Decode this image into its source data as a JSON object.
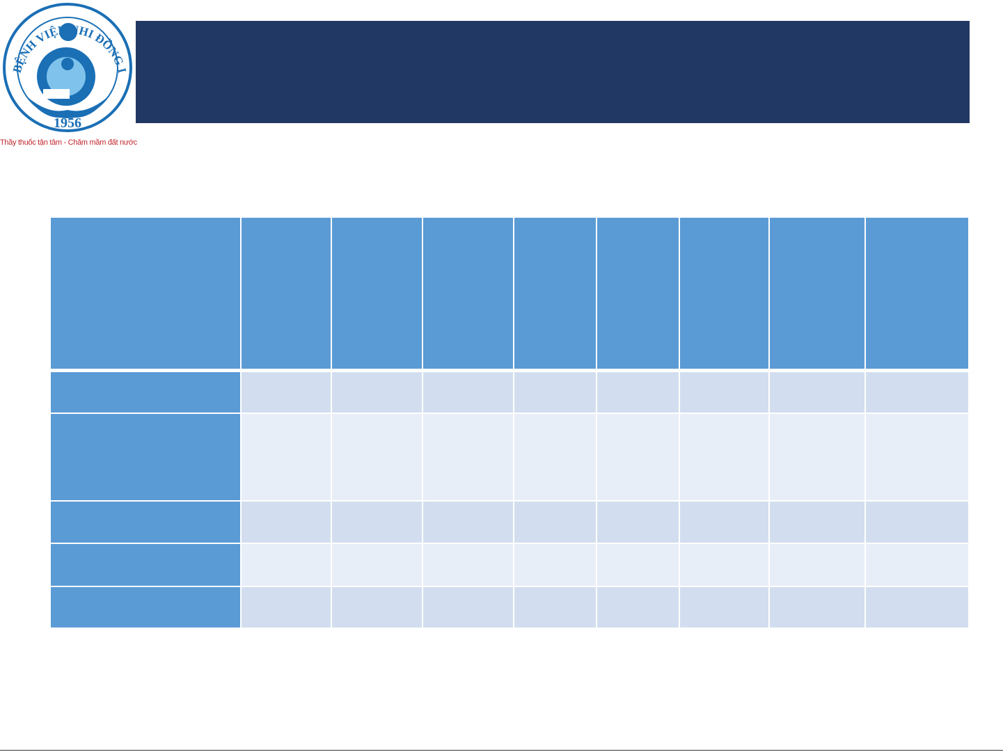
{
  "logo": {
    "name": "BỆNH VIỆN NHI ĐỒNG I",
    "year": "1956",
    "motto": "Thầy thuốc tận tâm - Chăm mầm đất nước"
  }
}
